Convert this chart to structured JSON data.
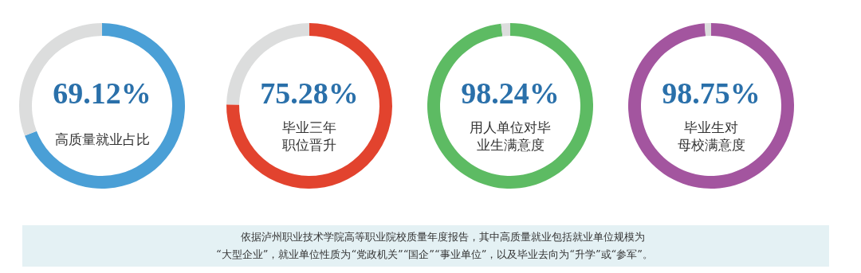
{
  "chart_data": [
    {
      "type": "donut",
      "title": "高质量就业占比",
      "categories": [
        null,
        null
      ],
      "values": [
        69.12,
        30.88
      ],
      "colors": [
        "#4a9fd6",
        "#dcdddd"
      ],
      "value_labels": [
        "69.12%",
        null
      ]
    },
    {
      "type": "donut",
      "title": "毕业三年",
      "subtitle": "职位晋升",
      "categories": [
        null,
        null
      ],
      "values": [
        75.28,
        24.72
      ],
      "colors": [
        "#e2432e",
        "#dcdddd"
      ],
      "value_labels": [
        "75.28%",
        null
      ]
    },
    {
      "type": "donut",
      "title": "用人单位对毕",
      "subtitle": "业生满意度",
      "categories": [
        null,
        null
      ],
      "values": [
        98.24,
        1.76
      ],
      "colors": [
        "#5dbb63",
        "#dcdddd"
      ],
      "value_labels": [
        "98.24%",
        null
      ]
    },
    {
      "type": "donut",
      "title": "毕业生对",
      "subtitle": "母校满意度",
      "categories": [
        null,
        null
      ],
      "values": [
        98.75,
        1.25
      ],
      "colors": [
        "#a3559f",
        "#dcdddd"
      ],
      "value_labels": [
        "98.75%",
        null
      ]
    },
    {
      "type": "other",
      "annotations": [
        "依据泸州职业技术学院高等职业院校质量年度报告，其中高质量就业包括就业单位规模为",
        "“大型企业”，就业单位性质为“党政机关”“国企”“事业单位”，以及毕业去向为“升学”或“参军”。"
      ]
    }
  ]
}
